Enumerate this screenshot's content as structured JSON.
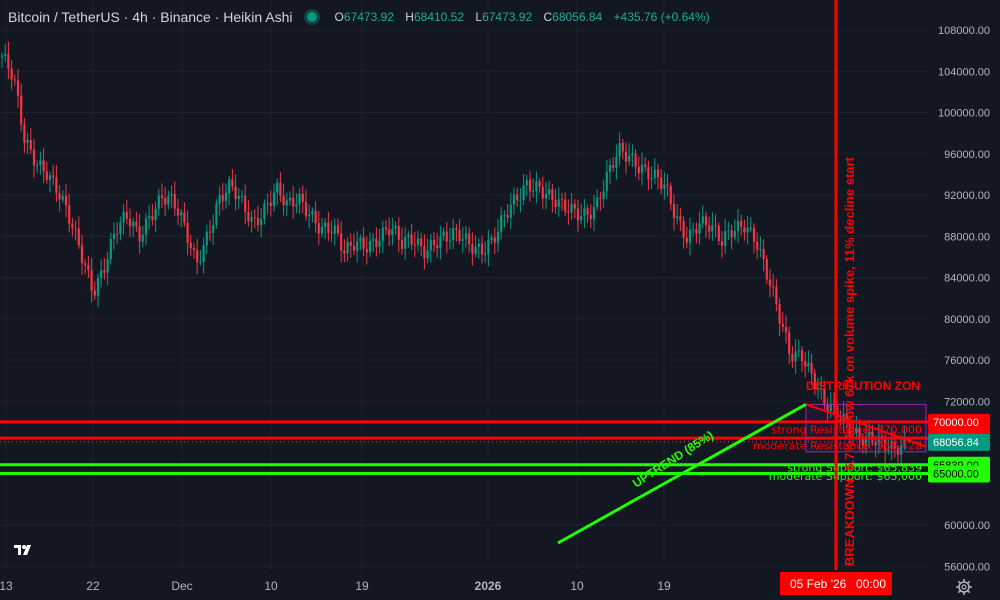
{
  "header": {
    "title": "Bitcoin / TetherUS · 4h · Binance · Heikin Ashi",
    "open_key": "O",
    "open": "67473.92",
    "high_key": "H",
    "high": "68410.52",
    "low_key": "L",
    "low": "67473.92",
    "close_key": "C",
    "close": "68056.84",
    "change": "+435.76 (+0.64%)"
  },
  "chart_data": {
    "type": "candlestick",
    "symbol": "Bitcoin / TetherUS",
    "interval": "4h",
    "style": "Heikin Ashi",
    "y_ticks": [
      "108000.00",
      "104000.00",
      "100000.00",
      "96000.00",
      "92000.00",
      "88000.00",
      "84000.00",
      "80000.00",
      "76000.00",
      "72000.00",
      "60000.00",
      "56000.00"
    ],
    "x_ticks": [
      "13",
      "22",
      "Dec",
      "10",
      "19",
      "2026",
      "10",
      "19"
    ],
    "ylim": [
      55000,
      110500
    ],
    "price_path": [
      [
        0,
        105500
      ],
      [
        1,
        103000
      ],
      [
        2,
        97000
      ],
      [
        3,
        95500
      ],
      [
        4,
        94500
      ],
      [
        5,
        92000
      ],
      [
        6,
        89000
      ],
      [
        7,
        86000
      ],
      [
        8,
        83000
      ],
      [
        9,
        85500
      ],
      [
        10,
        88500
      ],
      [
        11,
        89500
      ],
      [
        12,
        88000
      ],
      [
        13,
        90500
      ],
      [
        14,
        92000
      ],
      [
        15,
        91000
      ],
      [
        16,
        88500
      ],
      [
        17,
        85500
      ],
      [
        18,
        88500
      ],
      [
        19,
        91500
      ],
      [
        20,
        92500
      ],
      [
        21,
        91000
      ],
      [
        22,
        89500
      ],
      [
        23,
        91000
      ],
      [
        24,
        92500
      ],
      [
        25,
        90500
      ],
      [
        26,
        91500
      ],
      [
        27,
        90500
      ],
      [
        28,
        89000
      ],
      [
        29,
        88500
      ],
      [
        30,
        86000
      ],
      [
        31,
        87500
      ],
      [
        32,
        87500
      ],
      [
        33,
        88000
      ],
      [
        34,
        88500
      ],
      [
        35,
        87000
      ],
      [
        36,
        88000
      ],
      [
        37,
        87000
      ],
      [
        38,
        87500
      ],
      [
        39,
        87500
      ],
      [
        40,
        88000
      ],
      [
        41,
        87500
      ],
      [
        42,
        87000
      ],
      [
        43,
        87500
      ],
      [
        44,
        89500
      ],
      [
        45,
        91500
      ],
      [
        46,
        93500
      ],
      [
        47,
        93000
      ],
      [
        48,
        91500
      ],
      [
        49,
        90500
      ],
      [
        50,
        90500
      ],
      [
        51,
        90500
      ],
      [
        52,
        91000
      ],
      [
        53,
        93500
      ],
      [
        54,
        96000
      ],
      [
        55,
        95800
      ],
      [
        56,
        95000
      ],
      [
        57,
        94000
      ],
      [
        58,
        92500
      ],
      [
        59,
        89500
      ],
      [
        60,
        88000
      ],
      [
        61,
        89800
      ],
      [
        62,
        89000
      ],
      [
        63,
        87000
      ],
      [
        64,
        88500
      ],
      [
        65,
        89500
      ],
      [
        66,
        88000
      ],
      [
        67,
        84000
      ],
      [
        68,
        80000
      ],
      [
        69,
        76500
      ],
      [
        70,
        77000
      ],
      [
        71,
        74500
      ],
      [
        72,
        71500
      ],
      [
        73,
        70500
      ],
      [
        74,
        70000
      ],
      [
        75,
        69000
      ],
      [
        76,
        68500
      ],
      [
        77,
        67500
      ],
      [
        78,
        67000
      ],
      [
        79,
        68056.84
      ]
    ],
    "levels": [
      {
        "name": "resistance 70000",
        "value": 70000.0,
        "label": "70000.00",
        "color": "#ff0000"
      },
      {
        "name": "resistance 68428",
        "value": 68428.0,
        "label": "68428.00",
        "color": "#ff0000"
      },
      {
        "name": "last price",
        "value": 68056.84,
        "label": "68056.84",
        "color": "#089981"
      },
      {
        "name": "support 65839",
        "value": 65839.0,
        "label": "65839.00",
        "color": "#22ff00"
      },
      {
        "name": "support 65000",
        "value": 65000.0,
        "label": "65000.00",
        "color": "#22ff00"
      }
    ],
    "annotations": {
      "uptrend": "UPTREND (85%)",
      "breakdown": "BREAKDOWN: 6.7% below 67k on volume spike, 11% decline start",
      "distribution": "DISTRIBUTION ZON",
      "strong_resistance": "strong Resistance: $70,000",
      "moderate_resistance": "moderate Resistance: $68,428",
      "strong_support": "strong Support: $65,839",
      "moderate_support": "moderate Support: $65,000"
    },
    "crosshair_date": "05 Feb '26",
    "crosshair_time": "00:00"
  },
  "colors": {
    "background": "#131722",
    "up": "#089981",
    "down": "#f23645",
    "resistance": "#ff0000",
    "support": "#22ff00"
  },
  "icons": {
    "logo": "tradingview-logo",
    "settings": "settings-gear-icon"
  }
}
